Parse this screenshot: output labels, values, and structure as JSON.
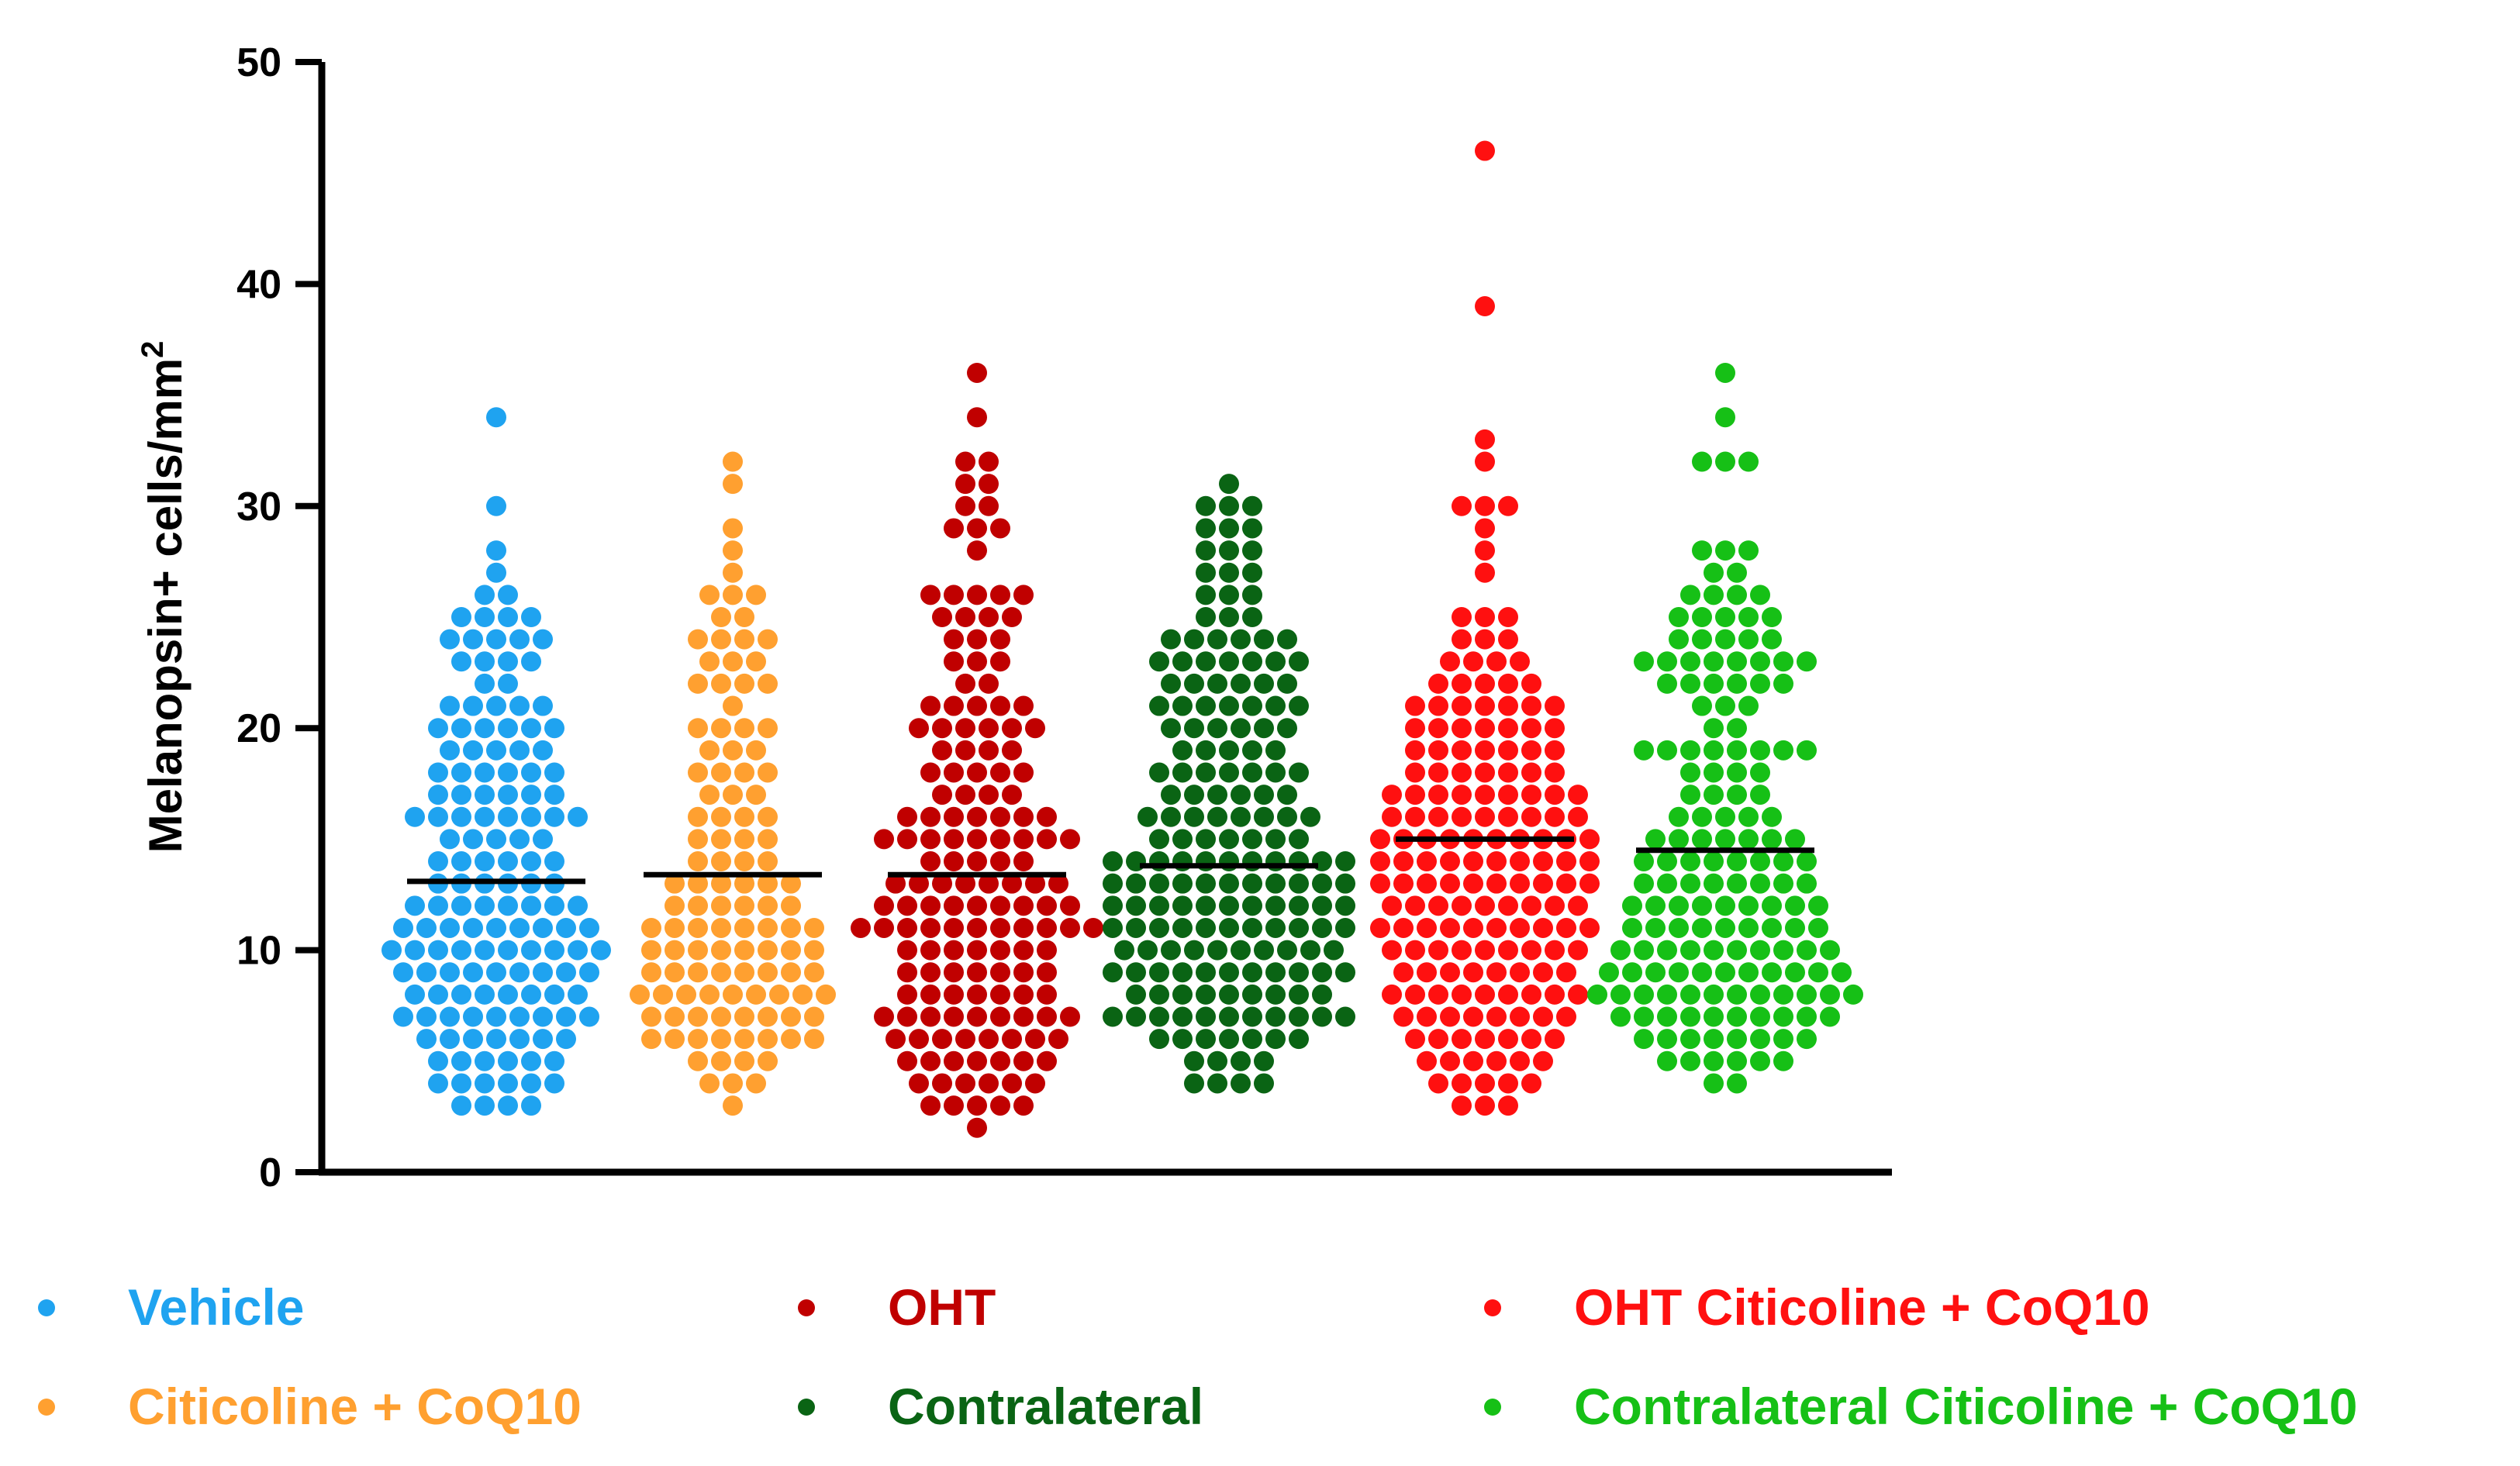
{
  "chart_data": {
    "type": "scatter",
    "subtype": "dot-plot-with-mean",
    "ylabel": "Melanopsin+ cells/mm",
    "ylabel_superscript": "2",
    "ylim": [
      0,
      50
    ],
    "yticks": [
      0,
      10,
      20,
      30,
      40,
      50
    ],
    "series": [
      {
        "name": "Vehicle",
        "color": "#1fa3f0",
        "mean": 13.1,
        "values": [
          [
            3,
            4
          ],
          [
            4,
            6
          ],
          [
            5,
            6
          ],
          [
            6,
            7
          ],
          [
            7,
            9
          ],
          [
            8,
            8
          ],
          [
            9,
            9
          ],
          [
            10,
            10
          ],
          [
            11,
            9
          ],
          [
            12,
            8
          ],
          [
            13,
            6
          ],
          [
            14,
            6
          ],
          [
            15,
            5
          ],
          [
            16,
            8
          ],
          [
            17,
            6
          ],
          [
            18,
            6
          ],
          [
            19,
            5
          ],
          [
            20,
            6
          ],
          [
            21,
            5
          ],
          [
            22,
            2
          ],
          [
            23,
            4
          ],
          [
            24,
            5
          ],
          [
            25,
            4
          ],
          [
            26,
            2
          ],
          [
            27,
            1
          ],
          [
            28,
            1
          ],
          [
            30,
            1
          ],
          [
            34,
            1
          ]
        ]
      },
      {
        "name": "Citicoline + CoQ10",
        "color": "#ffa030",
        "mean": 13.4,
        "values": [
          [
            3,
            1
          ],
          [
            4,
            3
          ],
          [
            5,
            4
          ],
          [
            6,
            8
          ],
          [
            7,
            8
          ],
          [
            8,
            9
          ],
          [
            9,
            8
          ],
          [
            10,
            8
          ],
          [
            11,
            8
          ],
          [
            12,
            6
          ],
          [
            13,
            6
          ],
          [
            14,
            4
          ],
          [
            15,
            4
          ],
          [
            16,
            4
          ],
          [
            17,
            3
          ],
          [
            18,
            4
          ],
          [
            19,
            3
          ],
          [
            20,
            4
          ],
          [
            21,
            1
          ],
          [
            22,
            4
          ],
          [
            23,
            3
          ],
          [
            24,
            4
          ],
          [
            25,
            2
          ],
          [
            26,
            3
          ],
          [
            27,
            1
          ],
          [
            28,
            1
          ],
          [
            29,
            1
          ],
          [
            31,
            1
          ],
          [
            32,
            1
          ]
        ]
      },
      {
        "name": "OHT",
        "color": "#c00000",
        "mean": 13.4,
        "values": [
          [
            2,
            1
          ],
          [
            3,
            5
          ],
          [
            4,
            6
          ],
          [
            5,
            7
          ],
          [
            6,
            8
          ],
          [
            7,
            9
          ],
          [
            8,
            7
          ],
          [
            9,
            7
          ],
          [
            10,
            7
          ],
          [
            11,
            11
          ],
          [
            12,
            9
          ],
          [
            13,
            8
          ],
          [
            14,
            5
          ],
          [
            15,
            9
          ],
          [
            16,
            7
          ],
          [
            17,
            4
          ],
          [
            18,
            5
          ],
          [
            19,
            4
          ],
          [
            20,
            6
          ],
          [
            21,
            5
          ],
          [
            22,
            2
          ],
          [
            23,
            3
          ],
          [
            24,
            3
          ],
          [
            25,
            4
          ],
          [
            26,
            5
          ],
          [
            28,
            1
          ],
          [
            29,
            3
          ],
          [
            30,
            2
          ],
          [
            31,
            2
          ],
          [
            32,
            2
          ],
          [
            34,
            1
          ],
          [
            36,
            1
          ]
        ]
      },
      {
        "name": "Contralateral",
        "color": "#0a6414",
        "mean": 13.8,
        "values": [
          [
            4,
            4
          ],
          [
            5,
            4
          ],
          [
            6,
            7
          ],
          [
            7,
            11
          ],
          [
            8,
            9
          ],
          [
            9,
            11
          ],
          [
            10,
            10
          ],
          [
            11,
            11
          ],
          [
            12,
            11
          ],
          [
            13,
            11
          ],
          [
            14,
            11
          ],
          [
            15,
            7
          ],
          [
            16,
            8
          ],
          [
            17,
            6
          ],
          [
            18,
            7
          ],
          [
            19,
            5
          ],
          [
            20,
            6
          ],
          [
            21,
            7
          ],
          [
            22,
            6
          ],
          [
            23,
            7
          ],
          [
            24,
            6
          ],
          [
            25,
            3
          ],
          [
            26,
            3
          ],
          [
            27,
            3
          ],
          [
            28,
            3
          ],
          [
            29,
            3
          ],
          [
            30,
            3
          ],
          [
            31,
            1
          ]
        ]
      },
      {
        "name": "OHT Citicoline + CoQ10",
        "color": "#ff1010",
        "mean": 15.0,
        "values": [
          [
            3,
            3
          ],
          [
            4,
            5
          ],
          [
            5,
            6
          ],
          [
            6,
            7
          ],
          [
            7,
            8
          ],
          [
            8,
            9
          ],
          [
            9,
            8
          ],
          [
            10,
            9
          ],
          [
            11,
            10
          ],
          [
            12,
            9
          ],
          [
            13,
            10
          ],
          [
            14,
            10
          ],
          [
            15,
            10
          ],
          [
            16,
            9
          ],
          [
            17,
            9
          ],
          [
            18,
            7
          ],
          [
            19,
            7
          ],
          [
            20,
            7
          ],
          [
            21,
            7
          ],
          [
            22,
            5
          ],
          [
            23,
            4
          ],
          [
            24,
            3
          ],
          [
            25,
            3
          ],
          [
            27,
            1
          ],
          [
            28,
            1
          ],
          [
            29,
            1
          ],
          [
            30,
            3
          ],
          [
            32,
            1
          ],
          [
            33,
            1
          ],
          [
            39,
            1
          ],
          [
            46,
            1
          ]
        ]
      },
      {
        "name": "Contralateral Citicoline + CoQ10",
        "color": "#16c016",
        "mean": 14.5,
        "values": [
          [
            4,
            2
          ],
          [
            5,
            6
          ],
          [
            6,
            8
          ],
          [
            7,
            10
          ],
          [
            8,
            12
          ],
          [
            9,
            11
          ],
          [
            10,
            10
          ],
          [
            11,
            9
          ],
          [
            12,
            9
          ],
          [
            13,
            8
          ],
          [
            14,
            8
          ],
          [
            15,
            7
          ],
          [
            16,
            5
          ],
          [
            17,
            4
          ],
          [
            18,
            4
          ],
          [
            19,
            8
          ],
          [
            20,
            2
          ],
          [
            21,
            3
          ],
          [
            22,
            6
          ],
          [
            23,
            8
          ],
          [
            24,
            5
          ],
          [
            25,
            5
          ],
          [
            26,
            4
          ],
          [
            27,
            2
          ],
          [
            28,
            3
          ],
          [
            32,
            3
          ],
          [
            34,
            1
          ],
          [
            36,
            1
          ]
        ]
      }
    ]
  }
}
